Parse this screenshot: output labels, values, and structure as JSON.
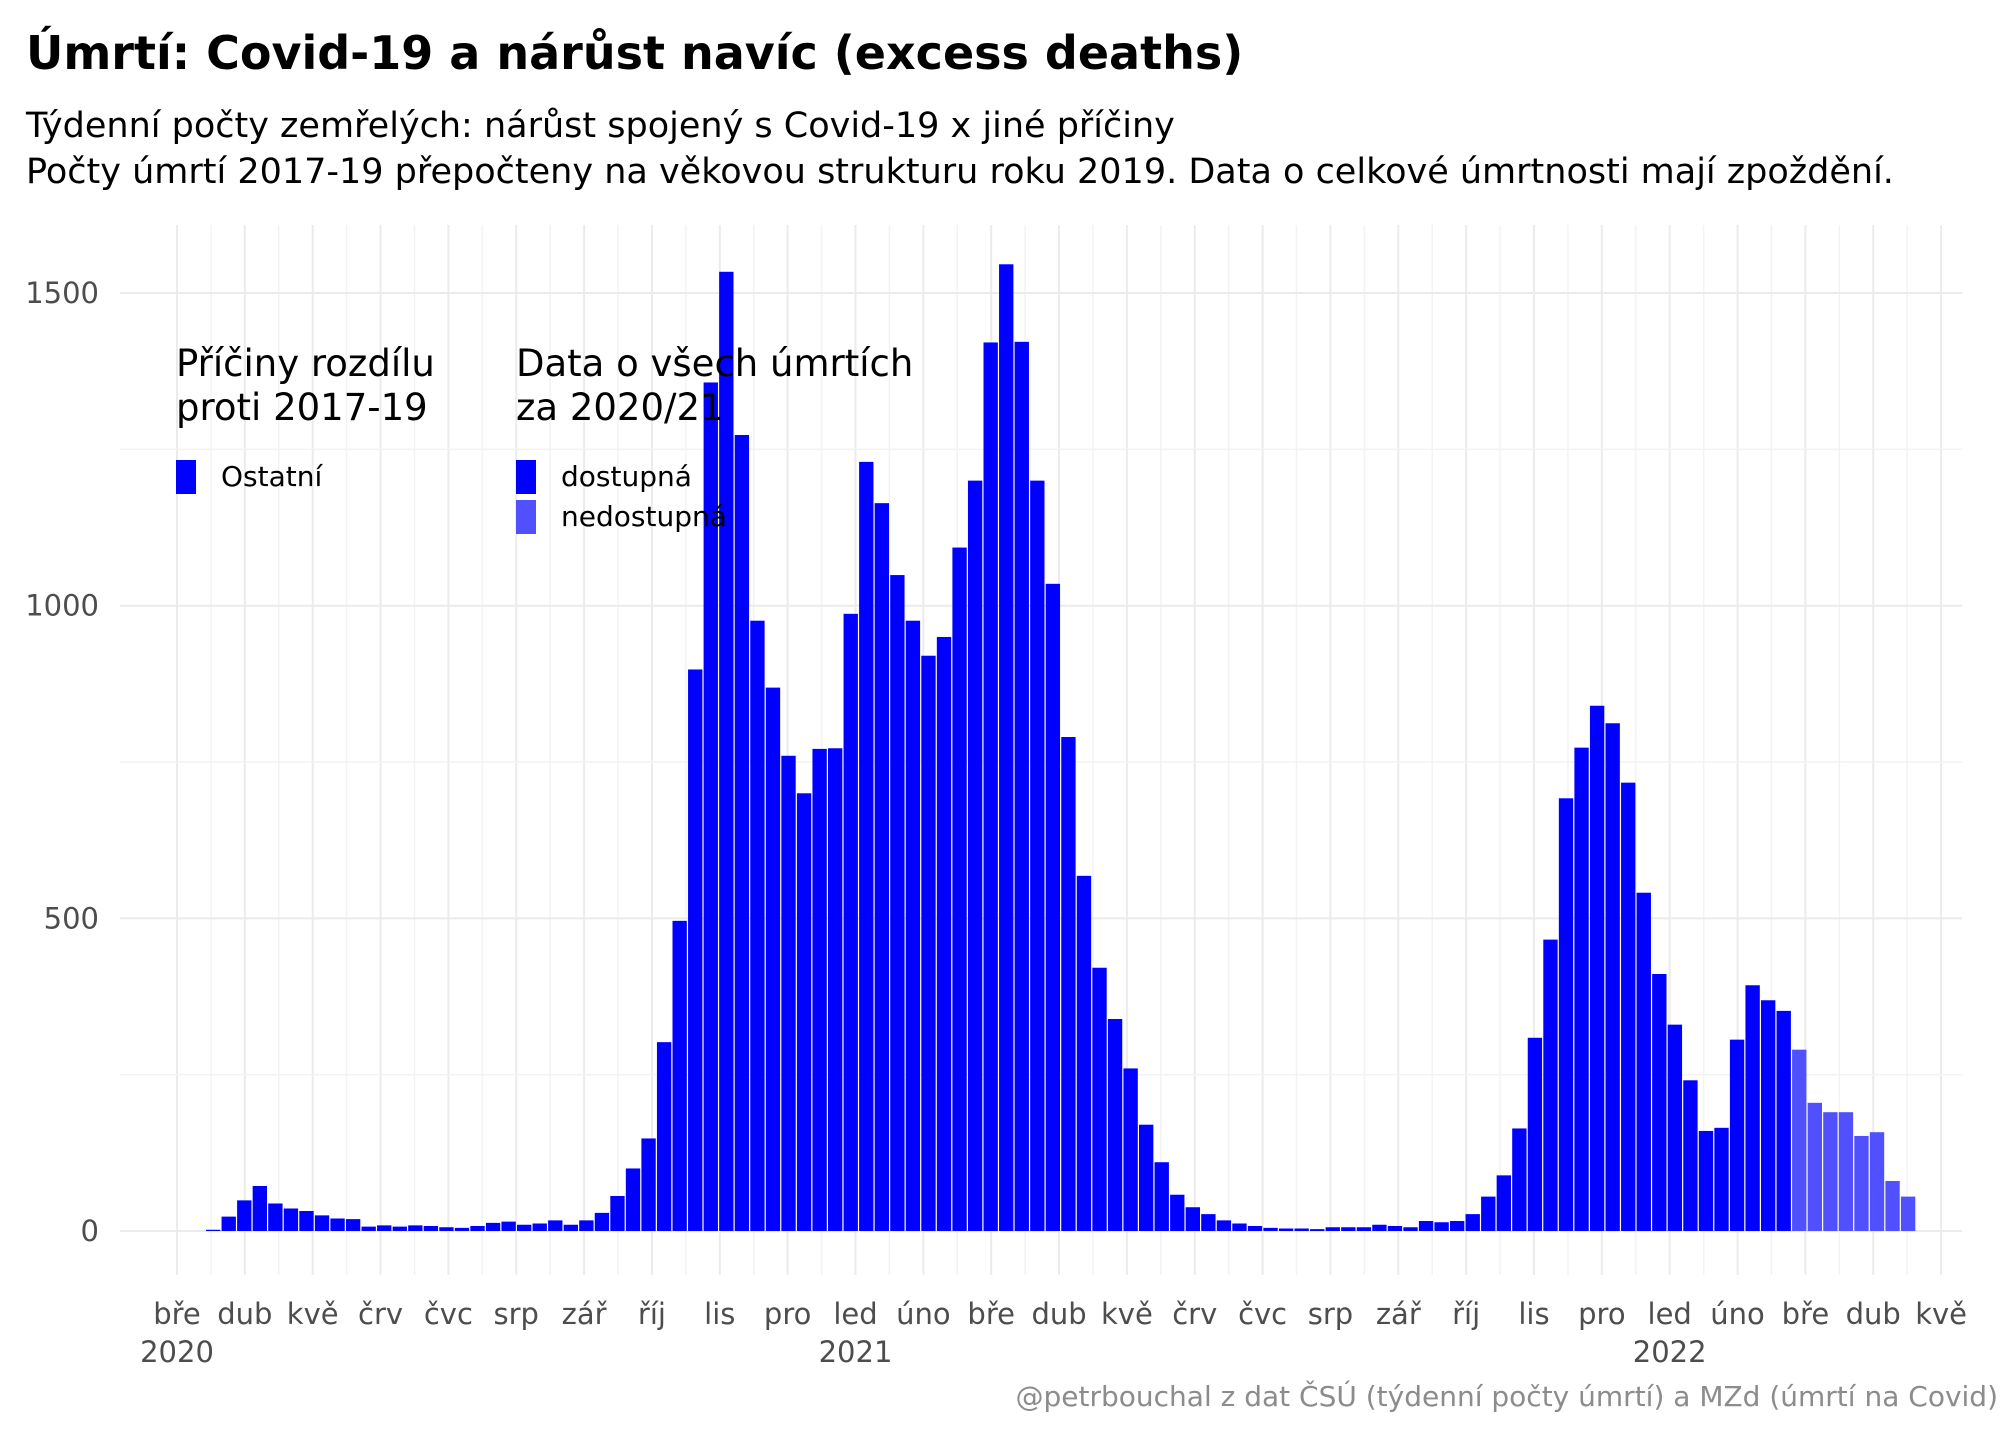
{
  "title": "Úmrtí: Covid-19 a nárůst navíc (excess deaths)",
  "subtitle_line1": "Týdenní počty zemřelých: nárůst spojený s Covid-19 x jiné příčiny",
  "subtitle_line2": "Počty úmrtí 2017-19 přepočteny na věkovou strukturu roku 2019. Data o celkové úmrtnosti mají zpoždění.",
  "caption": "@petrbouchal z dat ČSÚ (týdenní počty úmrtí) a MZd (úmrtí na Covid)",
  "legend": {
    "causes_title": "Příčiny rozdílu\nproti 2017-19",
    "causes_items": [
      {
        "label": "Ostatní",
        "color": "#0000ff"
      }
    ],
    "availability_title": "Data o všech úmrtích\nza 2020/21",
    "availability_items": [
      {
        "label": "dostupná",
        "color": "#0000ff"
      },
      {
        "label": "nedostupná",
        "color": "#5050ff"
      }
    ]
  },
  "chart_data": {
    "type": "bar",
    "stacked_by": "availability",
    "x_unit": "week",
    "y_ticks": [
      0,
      500,
      1000,
      1500
    ],
    "ylim": [
      -70,
      1620
    ],
    "grid": true,
    "legend_position": "top-left, inside plot",
    "x_ticks": [
      {
        "label": "bře",
        "year": "2020"
      },
      {
        "label": "dub",
        "year": ""
      },
      {
        "label": "kvě",
        "year": ""
      },
      {
        "label": "črv",
        "year": ""
      },
      {
        "label": "čvc",
        "year": ""
      },
      {
        "label": "srp",
        "year": ""
      },
      {
        "label": "zář",
        "year": ""
      },
      {
        "label": "říj",
        "year": ""
      },
      {
        "label": "lis",
        "year": ""
      },
      {
        "label": "pro",
        "year": ""
      },
      {
        "label": "led",
        "year": "2021"
      },
      {
        "label": "úno",
        "year": ""
      },
      {
        "label": "bře",
        "year": ""
      },
      {
        "label": "dub",
        "year": ""
      },
      {
        "label": "kvě",
        "year": ""
      },
      {
        "label": "črv",
        "year": ""
      },
      {
        "label": "čvc",
        "year": ""
      },
      {
        "label": "srp",
        "year": ""
      },
      {
        "label": "zář",
        "year": ""
      },
      {
        "label": "říj",
        "year": ""
      },
      {
        "label": "lis",
        "year": ""
      },
      {
        "label": "pro",
        "year": ""
      },
      {
        "label": "led",
        "year": "2022"
      },
      {
        "label": "úno",
        "year": ""
      },
      {
        "label": "bře",
        "year": ""
      },
      {
        "label": "dub",
        "year": ""
      },
      {
        "label": "kvě",
        "year": ""
      }
    ],
    "series": [
      {
        "name": "dostupná",
        "color": "#0000ff",
        "values": [
          2,
          23,
          49,
          72,
          44,
          36,
          32,
          25,
          20,
          19,
          7,
          9,
          7,
          9,
          8,
          6,
          5,
          8,
          13,
          15,
          10,
          12,
          17,
          10,
          17,
          29,
          56,
          100,
          148,
          302,
          496,
          898,
          1357,
          1534,
          1273,
          976,
          869,
          760,
          700,
          771,
          772,
          987,
          1230,
          1164,
          1049,
          976,
          920,
          950,
          1093,
          1200,
          1421,
          1546,
          1422,
          1200,
          1035,
          790,
          568,
          421,
          339,
          260,
          170,
          110,
          58,
          38,
          27,
          17,
          12,
          8,
          5,
          4,
          4,
          3,
          6,
          6,
          6,
          10,
          8,
          6,
          16,
          14,
          16,
          27,
          55,
          89,
          164,
          309,
          466,
          692,
          773,
          840,
          812,
          717,
          541,
          411,
          330,
          241,
          160,
          165,
          306,
          393,
          369,
          352,
          0,
          0,
          0,
          0,
          0,
          0,
          0,
          0
        ]
      },
      {
        "name": "nedostupná",
        "color": "#5050ff",
        "values": [
          0,
          0,
          0,
          0,
          0,
          0,
          0,
          0,
          0,
          0,
          0,
          0,
          0,
          0,
          0,
          0,
          0,
          0,
          0,
          0,
          0,
          0,
          0,
          0,
          0,
          0,
          0,
          0,
          0,
          0,
          0,
          0,
          0,
          0,
          0,
          0,
          0,
          0,
          0,
          0,
          0,
          0,
          0,
          0,
          0,
          0,
          0,
          0,
          0,
          0,
          0,
          0,
          0,
          0,
          0,
          0,
          0,
          0,
          0,
          0,
          0,
          0,
          0,
          0,
          0,
          0,
          0,
          0,
          0,
          0,
          0,
          0,
          0,
          0,
          0,
          0,
          0,
          0,
          0,
          0,
          0,
          0,
          0,
          0,
          0,
          0,
          0,
          0,
          0,
          0,
          0,
          0,
          0,
          0,
          0,
          0,
          0,
          0,
          0,
          0,
          0,
          0,
          290,
          205,
          190,
          190,
          152,
          158,
          80,
          55
        ]
      }
    ]
  }
}
